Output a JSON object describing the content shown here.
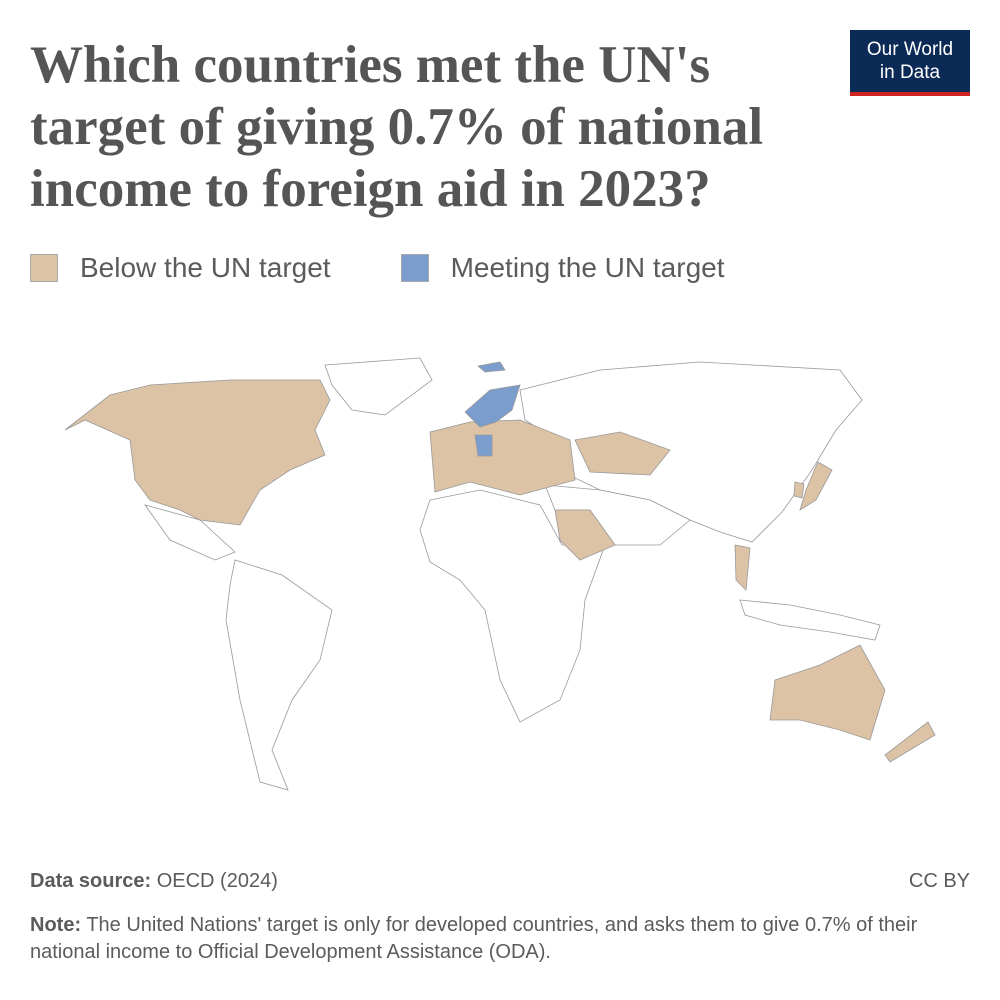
{
  "header": {
    "title": "Which countries met the UN's target of giving 0.7% of national income to foreign aid in 2023?",
    "logo": [
      "Our World",
      "in Data"
    ]
  },
  "legend": [
    {
      "label": "Below the UN target",
      "color": "#dcc3a6"
    },
    {
      "label": "Meeting the UN target",
      "color": "#7b9dcd"
    }
  ],
  "footer": {
    "source_label": "Data source:",
    "source": "OECD (2024)",
    "license": "CC BY",
    "note_label": "Note:",
    "note": "The United Nations' target is only for developed countries, and asks them to give 0.7% of their national income to Official Development Assistance (ODA)."
  }
}
